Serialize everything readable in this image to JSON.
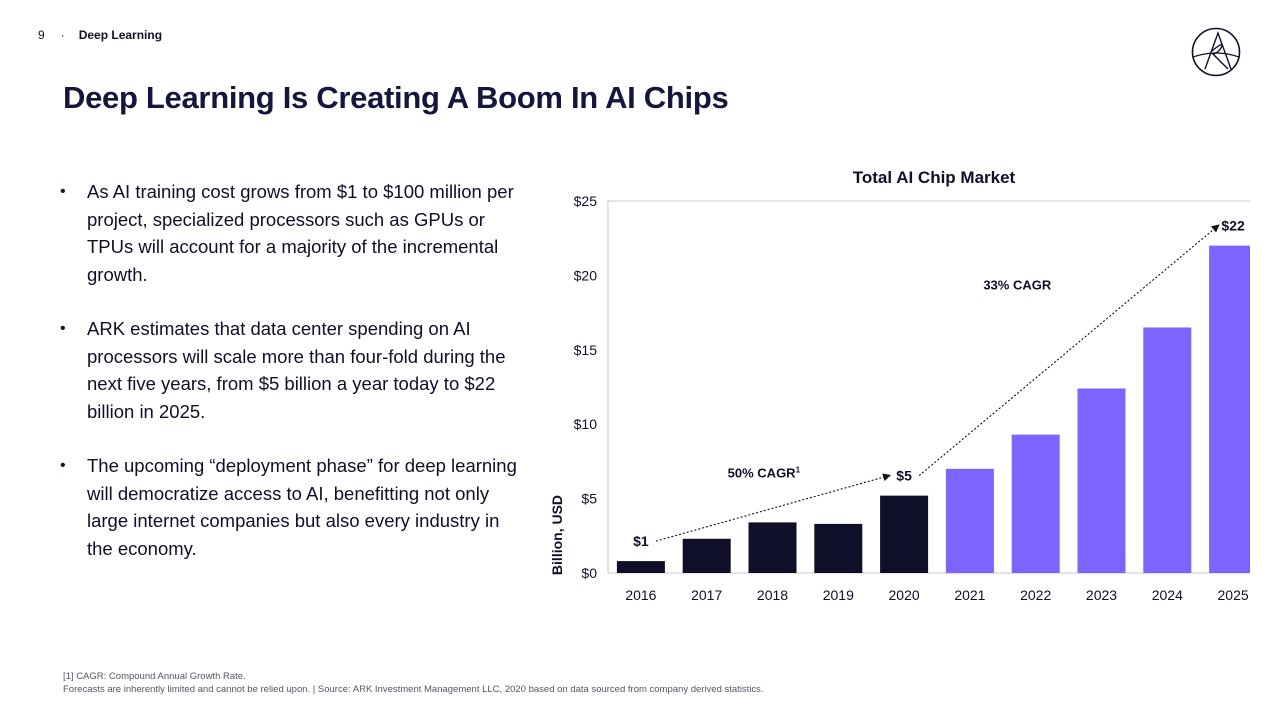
{
  "header": {
    "page_number": "9",
    "separator": "·",
    "section": "Deep Learning"
  },
  "title": "Deep Learning Is Creating A Boom In AI Chips",
  "bullets": [
    "As AI training cost grows from $1 to $100 million per project, specialized processors such as GPUs or TPUs will account for a majority of the incremental growth.",
    "ARK estimates that data center spending on AI processors will scale more than four-fold during the next five years, from $5 billion a year today to $22 billion in 2025.",
    "The upcoming “deployment phase” for deep learning will democratize access to AI, benefitting not only large internet companies but also every industry in the economy."
  ],
  "footer": {
    "note": "[1] CAGR: Compound Annual Growth Rate.",
    "source": "Forecasts are inherently limited and cannot be relied upon.  |  Source: ARK Investment Management LLC, 2020 based on data sourced from company derived statistics."
  },
  "logo": {
    "icon": "ark-logo-icon"
  },
  "colors": {
    "navy": "#0f0f2a",
    "purple": "#7f63ff",
    "title": "#15163d"
  },
  "chart_data": {
    "type": "bar",
    "title": "Total AI Chip Market",
    "xlabel": "",
    "ylabel": "Billion, USD",
    "categories": [
      "2016",
      "2017",
      "2018",
      "2019",
      "2020",
      "2021",
      "2022",
      "2023",
      "2024",
      "2025"
    ],
    "values": [
      0.8,
      2.3,
      3.4,
      3.3,
      5.2,
      7.0,
      9.3,
      12.4,
      16.5,
      22.0
    ],
    "actual_or_forecast": [
      "actual",
      "actual",
      "actual",
      "actual",
      "actual",
      "forecast",
      "forecast",
      "forecast",
      "forecast",
      "forecast"
    ],
    "ylim": [
      0,
      25
    ],
    "yticks": [
      0,
      5,
      10,
      15,
      20,
      25
    ],
    "ytick_labels": [
      "$0",
      "$5",
      "$10",
      "$15",
      "$20",
      "$25"
    ],
    "grid": false,
    "data_labels": [
      {
        "category": "2016",
        "text": "$1"
      },
      {
        "category": "2020",
        "text": "$5"
      },
      {
        "category": "2025",
        "text": "$22"
      }
    ],
    "annotations": [
      {
        "text": "50% CAGR",
        "superscript": "1",
        "from": "2016",
        "to": "2020"
      },
      {
        "text": "33% CAGR",
        "superscript": "",
        "from": "2020",
        "to": "2025"
      }
    ]
  }
}
